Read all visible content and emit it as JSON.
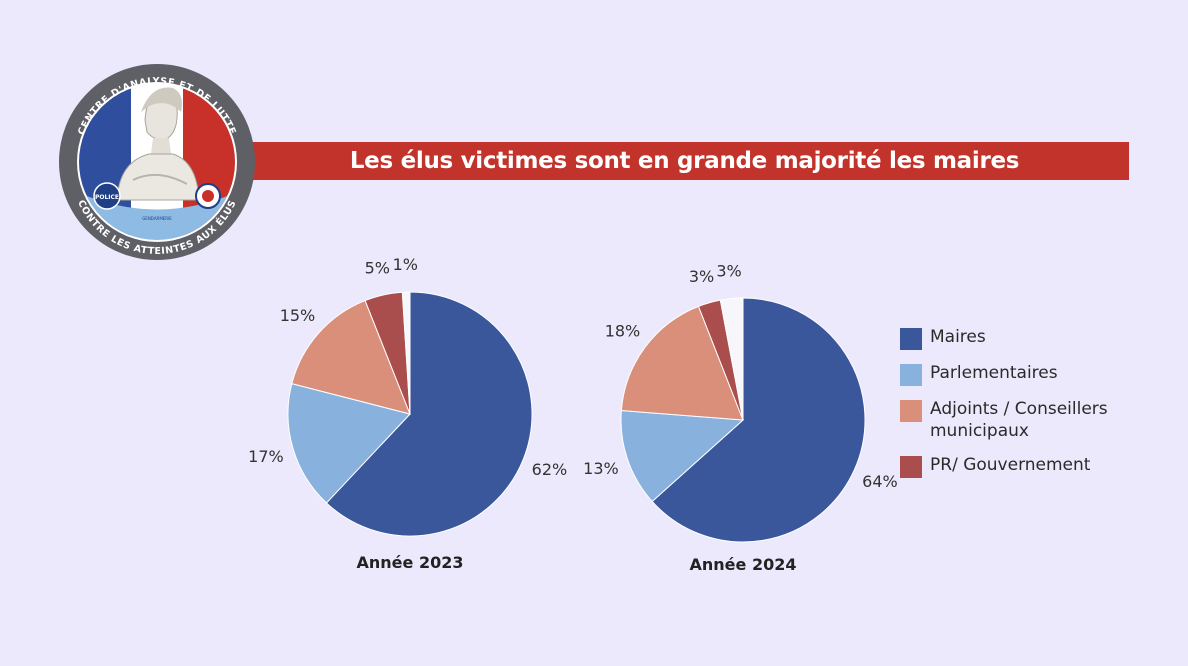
{
  "title": "Les élus victimes sont en grande majorité les maires",
  "emblem": {
    "text_top": "CENTRE D'ANALYSE ET DE LUTTE",
    "text_bottom": "CONTRE LES ATTEINTES AUX ÉLUS",
    "badge_left": "POLICE",
    "badge_right": "GENDARMERIE"
  },
  "colors": {
    "maires": "#3b579c",
    "parlementaires": "#88b1de",
    "adjoints": "#d98f7a",
    "pr_gouv": "#a94e4c",
    "other": "#f7f7fb",
    "title_band": "#c1332b",
    "background": "#ebe9fb"
  },
  "legend": [
    {
      "key": "maires",
      "label": "Maires"
    },
    {
      "key": "parlementaires",
      "label": "Parlementaires"
    },
    {
      "key": "adjoints",
      "label": "Adjoints / Conseillers municipaux"
    },
    {
      "key": "pr_gouv",
      "label": "PR/ Gouvernement"
    }
  ],
  "chart_data": [
    {
      "type": "pie",
      "title": "Année 2023",
      "slices": [
        {
          "key": "maires",
          "value": 62,
          "label": "62%"
        },
        {
          "key": "parlementaires",
          "value": 17,
          "label": "17%"
        },
        {
          "key": "adjoints",
          "value": 15,
          "label": "15%"
        },
        {
          "key": "pr_gouv",
          "value": 5,
          "label": "5%"
        },
        {
          "key": "other",
          "value": 1,
          "label": "1%"
        }
      ]
    },
    {
      "type": "pie",
      "title": "Année 2024",
      "slices": [
        {
          "key": "maires",
          "value": 64,
          "label": "64%"
        },
        {
          "key": "parlementaires",
          "value": 13,
          "label": "13%"
        },
        {
          "key": "adjoints",
          "value": 18,
          "label": "18%"
        },
        {
          "key": "pr_gouv",
          "value": 3,
          "label": "3%"
        },
        {
          "key": "other",
          "value": 3,
          "label": "3%"
        }
      ]
    }
  ]
}
